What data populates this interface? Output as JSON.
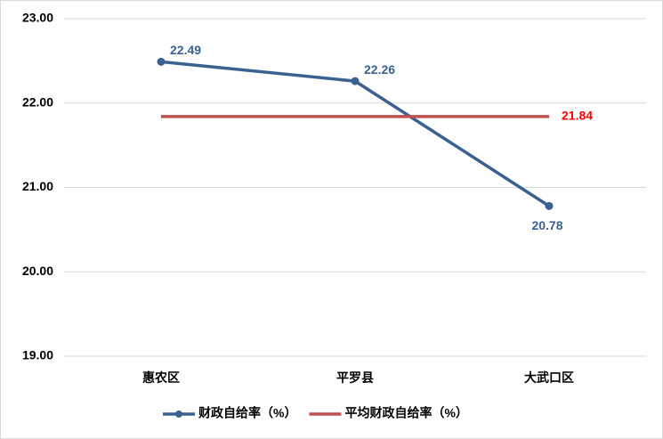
{
  "chart_data": {
    "type": "line",
    "categories": [
      "惠农区",
      "平罗县",
      "大武口区"
    ],
    "series": [
      {
        "name": "财政自给率（%）",
        "color": "#3b6190",
        "values": [
          22.49,
          22.26,
          20.78
        ]
      },
      {
        "name": "平均财政自给率（%）",
        "color": "#c0504d",
        "values": [
          21.84,
          21.84,
          21.84
        ],
        "label_color": "#ff0000"
      }
    ],
    "ylim": [
      19,
      23
    ],
    "yticks": [
      {
        "value": 19,
        "label": "19.00"
      },
      {
        "value": 20,
        "label": "20.00"
      },
      {
        "value": 21,
        "label": "21.00"
      },
      {
        "value": 22,
        "label": "22.00"
      },
      {
        "value": 23,
        "label": "23.00"
      }
    ],
    "grid": true
  }
}
